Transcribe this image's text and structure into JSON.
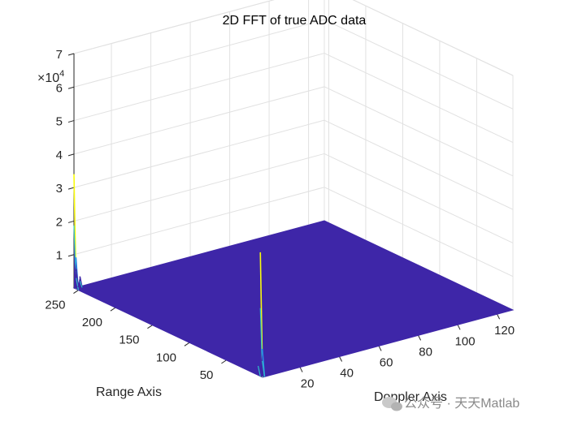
{
  "chart_data": {
    "type": "surface",
    "title": "2D FFT of true ADC data",
    "xlabel": "Doppler Axis",
    "ylabel": "Range Axis",
    "z_exponent_label": "×10",
    "z_exponent_power": "4",
    "x_ticks": [
      "20",
      "40",
      "60",
      "80",
      "100",
      "120"
    ],
    "y_ticks": [
      "50",
      "100",
      "150",
      "200",
      "250"
    ],
    "z_ticks": [
      "1",
      "2",
      "3",
      "4",
      "5",
      "6",
      "7"
    ],
    "xlim": [
      1,
      128
    ],
    "ylim": [
      1,
      256
    ],
    "zlim": [
      0,
      70000
    ],
    "grid": true,
    "colormap": "parula",
    "surface_color": "#3e26a8",
    "peak_colors": [
      "#3e26a8",
      "#2a8fe6",
      "#2ec0c9",
      "#9bd151",
      "#f9fb0e"
    ],
    "peaks": [
      {
        "x": 1,
        "y": 256,
        "z": 34000
      },
      {
        "x": 2,
        "y": 256,
        "z": 9000
      },
      {
        "x": 1,
        "y": 253,
        "z": 6000
      },
      {
        "x": 4,
        "y": 256,
        "z": 3000
      },
      {
        "x": 1,
        "y": 4,
        "z": 37000
      },
      {
        "x": 2,
        "y": 4,
        "z": 8000
      },
      {
        "x": 1,
        "y": 7,
        "z": 5000
      }
    ]
  },
  "watermark": "公众号 · 天天Matlab"
}
